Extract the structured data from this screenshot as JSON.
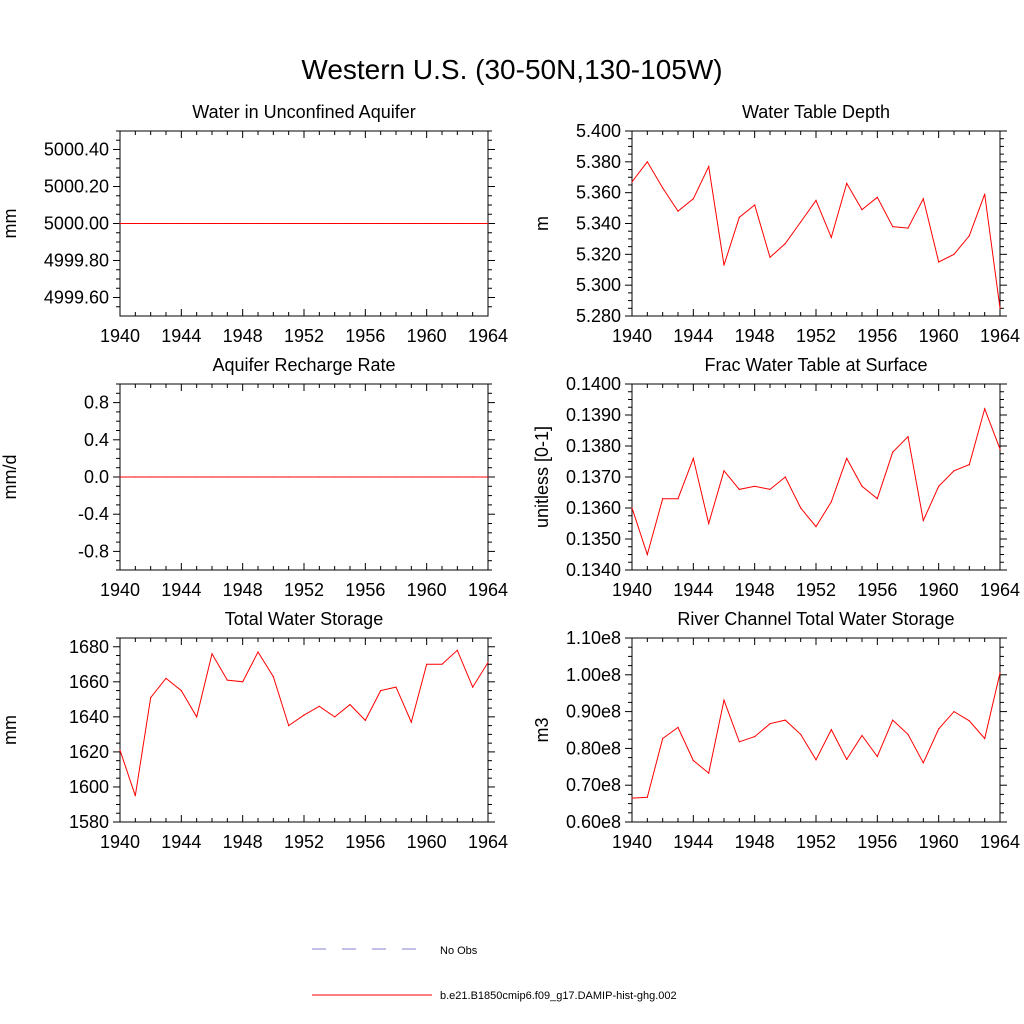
{
  "title": "Western U.S. (30-50N,130-105W)",
  "colors": {
    "series": "#ff0000",
    "obs": "#8080d0",
    "axis": "#000000"
  },
  "chart_data": [
    {
      "type": "line",
      "title": "Water in Unconfined Aquifer",
      "ylabel": "mm",
      "xlim": [
        1940,
        1964
      ],
      "ylim": [
        4999.5,
        5000.5
      ],
      "xticks": [
        1940,
        1944,
        1948,
        1952,
        1956,
        1960,
        1964
      ],
      "yticks": [
        4999.6,
        4999.8,
        5000.0,
        5000.2,
        5000.4
      ],
      "ytick_labels": [
        "4999.60",
        "4999.80",
        "5000.00",
        "5000.20",
        "5000.40"
      ],
      "series": [
        {
          "name": "b.e21.B1850cmip6.f09_g17.DAMIP-hist-ghg.002",
          "x": [
            1940,
            1941,
            1942,
            1943,
            1944,
            1945,
            1946,
            1947,
            1948,
            1949,
            1950,
            1951,
            1952,
            1953,
            1954,
            1955,
            1956,
            1957,
            1958,
            1959,
            1960,
            1961,
            1962,
            1963,
            1964
          ],
          "y": [
            5000,
            5000,
            5000,
            5000,
            5000,
            5000,
            5000,
            5000,
            5000,
            5000,
            5000,
            5000,
            5000,
            5000,
            5000,
            5000,
            5000,
            5000,
            5000,
            5000,
            5000,
            5000,
            5000,
            5000,
            5000
          ]
        }
      ]
    },
    {
      "type": "line",
      "title": "Water Table Depth",
      "ylabel": "m",
      "xlim": [
        1940,
        1964
      ],
      "ylim": [
        5.28,
        5.4
      ],
      "xticks": [
        1940,
        1944,
        1948,
        1952,
        1956,
        1960,
        1964
      ],
      "yticks": [
        5.28,
        5.3,
        5.32,
        5.34,
        5.36,
        5.38,
        5.4
      ],
      "ytick_labels": [
        "5.280",
        "5.300",
        "5.320",
        "5.340",
        "5.360",
        "5.380",
        "5.400"
      ],
      "series": [
        {
          "name": "b.e21.B1850cmip6.f09_g17.DAMIP-hist-ghg.002",
          "x": [
            1940,
            1941,
            1942,
            1943,
            1944,
            1945,
            1946,
            1947,
            1948,
            1949,
            1950,
            1951,
            1952,
            1953,
            1954,
            1955,
            1956,
            1957,
            1958,
            1959,
            1960,
            1961,
            1962,
            1963,
            1964
          ],
          "y": [
            5.367,
            5.38,
            5.363,
            5.348,
            5.356,
            5.377,
            5.313,
            5.344,
            5.352,
            5.318,
            5.327,
            5.341,
            5.355,
            5.331,
            5.366,
            5.349,
            5.357,
            5.338,
            5.337,
            5.356,
            5.315,
            5.32,
            5.332,
            5.359,
            5.285
          ]
        }
      ]
    },
    {
      "type": "line",
      "title": "Aquifer Recharge Rate",
      "ylabel": "mm/d",
      "xlim": [
        1940,
        1964
      ],
      "ylim": [
        -1.0,
        1.0
      ],
      "xticks": [
        1940,
        1944,
        1948,
        1952,
        1956,
        1960,
        1964
      ],
      "yticks": [
        -0.8,
        -0.4,
        0.0,
        0.4,
        0.8
      ],
      "ytick_labels": [
        "-0.8",
        "-0.4",
        "0.0",
        "0.4",
        "0.8"
      ],
      "series": [
        {
          "name": "b.e21.B1850cmip6.f09_g17.DAMIP-hist-ghg.002",
          "x": [
            1940,
            1941,
            1942,
            1943,
            1944,
            1945,
            1946,
            1947,
            1948,
            1949,
            1950,
            1951,
            1952,
            1953,
            1954,
            1955,
            1956,
            1957,
            1958,
            1959,
            1960,
            1961,
            1962,
            1963,
            1964
          ],
          "y": [
            0,
            0,
            0,
            0,
            0,
            0,
            0,
            0,
            0,
            0,
            0,
            0,
            0,
            0,
            0,
            0,
            0,
            0,
            0,
            0,
            0,
            0,
            0,
            0,
            0
          ]
        }
      ]
    },
    {
      "type": "line",
      "title": "Frac Water Table at Surface",
      "ylabel": "unitless [0-1]",
      "xlim": [
        1940,
        1964
      ],
      "ylim": [
        0.134,
        0.14
      ],
      "xticks": [
        1940,
        1944,
        1948,
        1952,
        1956,
        1960,
        1964
      ],
      "yticks": [
        0.134,
        0.135,
        0.136,
        0.137,
        0.138,
        0.139,
        0.14
      ],
      "ytick_labels": [
        "0.1340",
        "0.1350",
        "0.1360",
        "0.1370",
        "0.1380",
        "0.1390",
        "0.1400"
      ],
      "series": [
        {
          "name": "b.e21.B1850cmip6.f09_g17.DAMIP-hist-ghg.002",
          "x": [
            1940,
            1941,
            1942,
            1943,
            1944,
            1945,
            1946,
            1947,
            1948,
            1949,
            1950,
            1951,
            1952,
            1953,
            1954,
            1955,
            1956,
            1957,
            1958,
            1959,
            1960,
            1961,
            1962,
            1963,
            1964
          ],
          "y": [
            0.136,
            0.1345,
            0.1363,
            0.1363,
            0.1376,
            0.1355,
            0.1372,
            0.1366,
            0.1367,
            0.1366,
            0.137,
            0.136,
            0.1354,
            0.1362,
            0.1376,
            0.1367,
            0.1363,
            0.1378,
            0.1383,
            0.1356,
            0.1367,
            0.1372,
            0.1374,
            0.1392,
            0.1379
          ]
        }
      ]
    },
    {
      "type": "line",
      "title": "Total Water Storage",
      "ylabel": "mm",
      "xlim": [
        1940,
        1964
      ],
      "ylim": [
        1580,
        1685
      ],
      "xticks": [
        1940,
        1944,
        1948,
        1952,
        1956,
        1960,
        1964
      ],
      "yticks": [
        1580,
        1600,
        1620,
        1640,
        1660,
        1680
      ],
      "ytick_labels": [
        "1580",
        "1600",
        "1620",
        "1640",
        "1660",
        "1680"
      ],
      "series": [
        {
          "name": "b.e21.B1850cmip6.f09_g17.DAMIP-hist-ghg.002",
          "x": [
            1940,
            1941,
            1942,
            1943,
            1944,
            1945,
            1946,
            1947,
            1948,
            1949,
            1950,
            1951,
            1952,
            1953,
            1954,
            1955,
            1956,
            1957,
            1958,
            1959,
            1960,
            1961,
            1962,
            1963,
            1964
          ],
          "y": [
            1621,
            1595,
            1651,
            1662,
            1655,
            1640,
            1676,
            1661,
            1660,
            1677,
            1663,
            1635,
            1641,
            1646,
            1640,
            1647,
            1638,
            1655,
            1657,
            1637,
            1670,
            1670,
            1678,
            1657,
            1671
          ]
        }
      ]
    },
    {
      "type": "line",
      "title": "River Channel Total Water Storage",
      "ylabel": "m3",
      "xlim": [
        1940,
        1964
      ],
      "ylim": [
        0.6,
        1.1
      ],
      "xticks": [
        1940,
        1944,
        1948,
        1952,
        1956,
        1960,
        1964
      ],
      "yticks": [
        0.6,
        0.7,
        0.8,
        0.9,
        1.0,
        1.1
      ],
      "ytick_labels": [
        "0.60e8",
        "0.70e8",
        "0.80e8",
        "0.90e8",
        "1.00e8",
        "1.10e8"
      ],
      "series": [
        {
          "name": "b.e21.B1850cmip6.f09_g17.DAMIP-hist-ghg.002",
          "x": [
            1940,
            1941,
            1942,
            1943,
            1944,
            1945,
            1946,
            1947,
            1948,
            1949,
            1950,
            1951,
            1952,
            1953,
            1954,
            1955,
            1956,
            1957,
            1958,
            1959,
            1960,
            1961,
            1962,
            1963,
            1964
          ],
          "y": [
            0.665,
            0.667,
            0.827,
            0.857,
            0.767,
            0.733,
            0.931,
            0.818,
            0.832,
            0.867,
            0.877,
            0.838,
            0.769,
            0.851,
            0.77,
            0.835,
            0.778,
            0.877,
            0.838,
            0.761,
            0.853,
            0.9,
            0.875,
            0.827,
            1.005
          ]
        }
      ]
    }
  ],
  "legend": {
    "items": [
      {
        "label": "No Obs",
        "style": "dashed"
      },
      {
        "label": "b.e21.B1850cmip6.f09_g17.DAMIP-hist-ghg.002",
        "style": "solid"
      }
    ]
  }
}
